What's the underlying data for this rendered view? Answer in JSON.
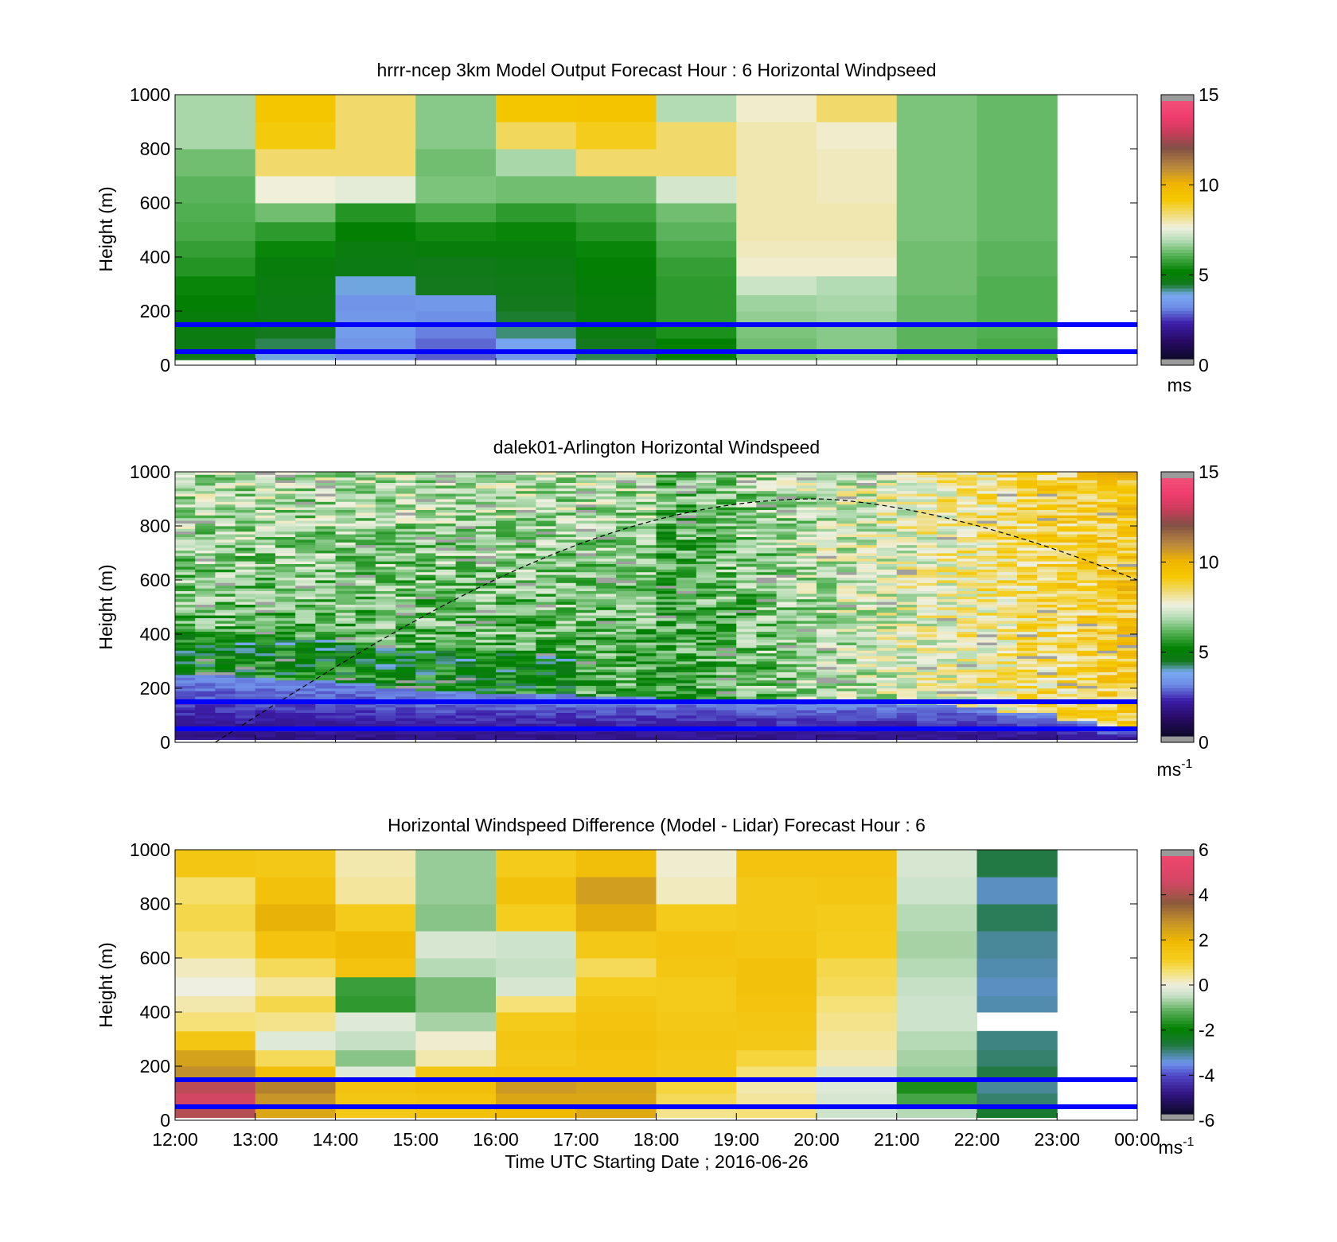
{
  "chart_data": [
    {
      "type": "heatmap",
      "title": "hrrr-ncep 3km Model Output   Forecast Hour : 6 Horizontal Windpseed",
      "ylabel": "Height (m)",
      "ylim": [
        0,
        1000
      ],
      "yticks": [
        "0",
        "200",
        "400",
        "600",
        "800",
        "1000"
      ],
      "xlim": [
        "12:00",
        "00:00"
      ],
      "colorbar": {
        "range": [
          0,
          15
        ],
        "ticks": [
          "0",
          "5",
          "10",
          "15"
        ],
        "unit": "ms",
        "unit_sup": ""
      },
      "reference_heights": [
        150,
        50
      ],
      "time_bins": [
        "12:00",
        "13:00",
        "14:00",
        "15:00",
        "16:00",
        "17:00",
        "18:00",
        "19:00",
        "20:00",
        "21:00",
        "22:00"
      ],
      "height_bins": [
        [
          20,
          50
        ],
        [
          50,
          100
        ],
        [
          100,
          150
        ],
        [
          150,
          200
        ],
        [
          200,
          260
        ],
        [
          260,
          330
        ],
        [
          330,
          400
        ],
        [
          400,
          460
        ],
        [
          460,
          530
        ],
        [
          530,
          600
        ],
        [
          600,
          700
        ],
        [
          700,
          800
        ],
        [
          800,
          900
        ],
        [
          900,
          1000
        ]
      ],
      "values": [
        [
          4.5,
          3.8,
          3.0,
          2.6,
          3.3,
          4.2,
          5.0,
          6.3,
          6.5,
          6.0,
          5.9
        ],
        [
          4.6,
          4.2,
          3.2,
          2.7,
          3.6,
          4.4,
          5.1,
          6.3,
          6.5,
          6.1,
          5.9
        ],
        [
          4.7,
          4.4,
          3.4,
          2.9,
          4.1,
          4.7,
          5.4,
          6.4,
          6.5,
          6.1,
          6.0
        ],
        [
          4.8,
          4.6,
          3.3,
          3.1,
          4.3,
          4.8,
          5.6,
          6.6,
          6.7,
          6.2,
          6.0
        ],
        [
          5.0,
          4.6,
          3.2,
          3.3,
          4.4,
          4.8,
          5.6,
          6.7,
          6.8,
          6.2,
          6.0
        ],
        [
          5.2,
          4.7,
          3.8,
          4.4,
          4.5,
          4.9,
          5.6,
          7.2,
          6.9,
          6.3,
          6.0
        ],
        [
          5.5,
          4.8,
          4.6,
          4.5,
          4.6,
          5.0,
          5.7,
          7.8,
          7.8,
          6.3,
          6.1
        ],
        [
          5.7,
          5.2,
          4.7,
          4.8,
          4.8,
          5.2,
          5.9,
          7.9,
          7.9,
          6.3,
          6.1
        ],
        [
          5.9,
          5.6,
          5.0,
          5.3,
          5.2,
          5.5,
          6.1,
          8.0,
          8.0,
          6.4,
          6.2
        ],
        [
          6.0,
          6.3,
          5.5,
          5.9,
          5.6,
          5.8,
          6.3,
          8.0,
          8.0,
          6.4,
          6.2
        ],
        [
          6.1,
          7.7,
          7.5,
          6.4,
          6.3,
          6.3,
          7.3,
          8.0,
          7.9,
          6.4,
          6.2
        ],
        [
          6.3,
          8.5,
          8.5,
          6.3,
          6.8,
          8.5,
          8.5,
          8.0,
          7.9,
          6.4,
          6.2
        ],
        [
          6.8,
          9.2,
          8.5,
          6.5,
          8.6,
          9.1,
          8.5,
          8.0,
          7.8,
          6.4,
          6.2
        ],
        [
          6.8,
          9.4,
          8.5,
          6.5,
          9.4,
          9.5,
          6.9,
          7.8,
          8.5,
          6.4,
          6.2
        ]
      ]
    },
    {
      "type": "heatmap",
      "title": "dalek01-Arlington  Horizontal Windspeed",
      "ylabel": "Height (m)",
      "ylim": [
        0,
        1000
      ],
      "yticks": [
        "0",
        "200",
        "400",
        "600",
        "800",
        "1000"
      ],
      "xlim": [
        "12:00",
        "00:00"
      ],
      "colorbar": {
        "range": [
          0,
          15
        ],
        "ticks": [
          "0",
          "5",
          "10",
          "15"
        ],
        "unit": "ms",
        "unit_sup": "-1"
      },
      "reference_heights": [
        150,
        50
      ],
      "time_range": [
        "12:00",
        "23:55"
      ],
      "column_step_minutes": 15,
      "height_range": [
        10,
        1000
      ],
      "low_jet_top_m": [
        250,
        240,
        230,
        220,
        200,
        190,
        180,
        175,
        170,
        165,
        160,
        155,
        150,
        150,
        145,
        140,
        130,
        110,
        80,
        45
      ],
      "dashed_curve_peak": [
        "20:00",
        900
      ],
      "dashed_curve_end": [
        "00:00",
        600
      ]
    },
    {
      "type": "heatmap",
      "title": "Horizontal Windspeed Difference (Model - Lidar) Forecast Hour : 6",
      "xlabel": "Time UTC  Starting Date ; 2016-06-26",
      "ylabel": "Height (m)",
      "ylim": [
        0,
        1000
      ],
      "yticks": [
        "0",
        "200",
        "400",
        "600",
        "800",
        "1000"
      ],
      "xlim": [
        "12:00",
        "00:00"
      ],
      "xticks": [
        "12:00",
        "13:00",
        "14:00",
        "15:00",
        "16:00",
        "17:00",
        "18:00",
        "19:00",
        "20:00",
        "21:00",
        "22:00",
        "23:00",
        "00:00"
      ],
      "colorbar": {
        "range": [
          -6,
          6
        ],
        "ticks": [
          "-6",
          "-4",
          "-2",
          "0",
          "2",
          "4",
          "6"
        ],
        "unit": "ms",
        "unit_sup": "-1"
      },
      "reference_heights": [
        150,
        50
      ],
      "time_bins": [
        "12:00",
        "13:00",
        "14:00",
        "15:00",
        "16:00",
        "17:00",
        "18:00",
        "19:00",
        "20:00",
        "21:00",
        "22:00"
      ],
      "height_bins": [
        [
          10,
          50
        ],
        [
          50,
          100
        ],
        [
          100,
          150
        ],
        [
          150,
          200
        ],
        [
          200,
          260
        ],
        [
          260,
          330
        ],
        [
          330,
          400
        ],
        [
          400,
          460
        ],
        [
          460,
          530
        ],
        [
          530,
          600
        ],
        [
          600,
          700
        ],
        [
          700,
          800
        ],
        [
          800,
          900
        ],
        [
          900,
          1000
        ]
      ],
      "values": [
        [
          4.4,
          2.5,
          1.4,
          1.7,
          2.0,
          2.4,
          0.5,
          0.6,
          -0.4,
          -0.6,
          -2.6
        ],
        [
          4.8,
          2.9,
          1.5,
          1.6,
          2.5,
          2.5,
          0.8,
          0.4,
          -0.3,
          -1.4,
          -3.0
        ],
        [
          4.5,
          3.2,
          1.6,
          1.8,
          2.8,
          2.6,
          1.0,
          0.3,
          -0.2,
          -1.8,
          -3.2
        ],
        [
          3.0,
          1.8,
          -0.2,
          1.5,
          1.6,
          1.6,
          1.4,
          0.6,
          -0.3,
          -0.8,
          -2.8
        ],
        [
          2.6,
          0.8,
          -0.9,
          0.3,
          1.4,
          1.6,
          1.4,
          1.0,
          0.3,
          -0.7,
          -3.0
        ],
        [
          1.5,
          -0.2,
          -0.5,
          0.1,
          1.5,
          1.7,
          1.5,
          1.4,
          0.4,
          -0.6,
          -3.1
        ],
        [
          0.6,
          0.5,
          -0.2,
          -0.7,
          1.3,
          1.6,
          1.4,
          1.5,
          0.5,
          -0.4,
          null
        ],
        [
          0.3,
          0.9,
          -1.6,
          -1.0,
          0.6,
          1.5,
          1.3,
          1.6,
          0.6,
          -0.4,
          -3.3
        ],
        [
          0.0,
          0.4,
          -1.5,
          -1.0,
          -0.3,
          1.2,
          1.3,
          1.7,
          0.8,
          -0.5,
          -3.4
        ],
        [
          0.2,
          0.8,
          1.6,
          -0.6,
          -0.5,
          0.8,
          1.5,
          1.7,
          0.9,
          -0.6,
          -3.3
        ],
        [
          0.7,
          1.6,
          1.9,
          -0.3,
          -0.4,
          1.4,
          1.6,
          1.5,
          1.2,
          -0.7,
          -3.2
        ],
        [
          0.9,
          2.2,
          1.3,
          -0.9,
          1.2,
          2.3,
          1.3,
          1.4,
          1.3,
          -0.6,
          -2.9
        ],
        [
          0.7,
          1.7,
          0.4,
          -0.8,
          1.7,
          2.7,
          0.2,
          1.4,
          1.5,
          -0.4,
          -3.4
        ],
        [
          1.5,
          1.4,
          0.3,
          -0.8,
          1.3,
          1.8,
          0.1,
          1.6,
          1.6,
          -0.3,
          -2.8
        ]
      ]
    }
  ]
}
